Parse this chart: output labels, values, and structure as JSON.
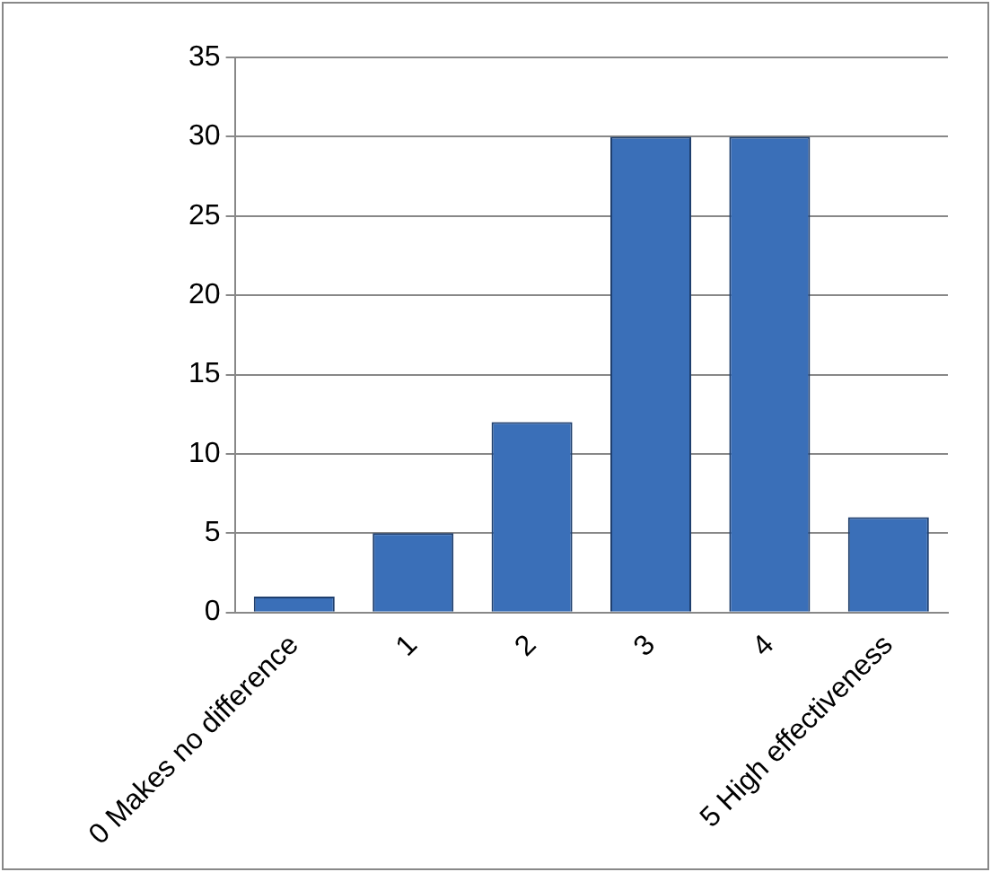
{
  "chart_data": {
    "type": "bar",
    "categories": [
      "0 Makes no difference",
      "1",
      "2",
      "3",
      "4",
      "5 High effectiveness"
    ],
    "values": [
      1,
      5,
      12,
      30,
      30,
      6
    ],
    "color": "#3a6fb8",
    "ylim": [
      0,
      35
    ],
    "yticks": [
      0,
      5,
      10,
      15,
      20,
      25,
      30,
      35
    ],
    "grid": "y",
    "legend": false
  }
}
